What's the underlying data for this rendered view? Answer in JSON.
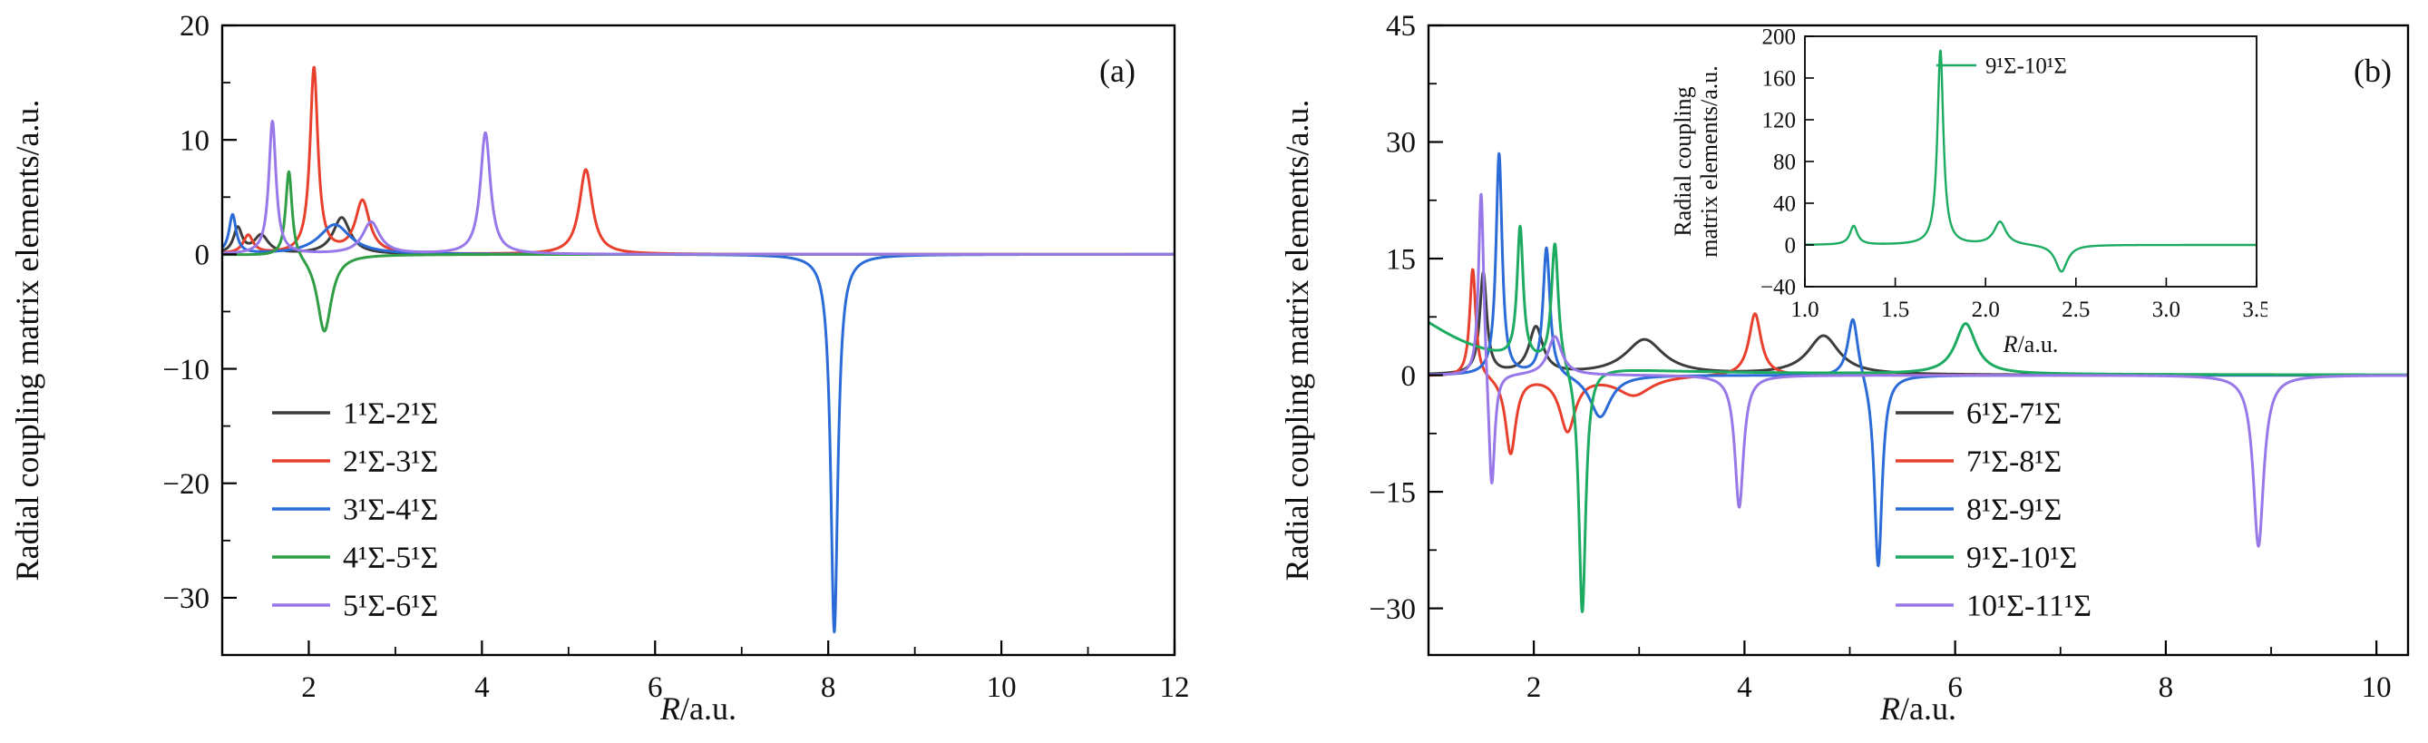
{
  "page": {
    "background": "#ffffff"
  },
  "chart_data": [
    {
      "id": "panel-a",
      "type": "line",
      "tag": "(a)",
      "xlabel": "R/a.u.",
      "ylabel": "Radial coupling matrix elements/a.u.",
      "xlim": [
        1,
        12
      ],
      "ylim": [
        -35,
        20
      ],
      "xticks": [
        2,
        4,
        6,
        8,
        10,
        12
      ],
      "yticks": [
        -30,
        -20,
        -10,
        0,
        10,
        20
      ],
      "xtick_decimals": 0,
      "grid": false,
      "legend_position": "lower-left",
      "curve_model": "lorentzian peaks: y = base + sum h*w^2/((x-c)^2+w^2), peak = [center c, height h, halfwidth w]",
      "series": [
        {
          "name": "1¹Σ-2¹Σ",
          "color": "#3d3d3d",
          "base": 0,
          "peaks": [
            [
              1.18,
              2.2,
              0.06
            ],
            [
              1.45,
              1.6,
              0.1
            ],
            [
              2.38,
              3.2,
              0.12
            ]
          ]
        },
        {
          "name": "2¹Σ-3¹Σ",
          "color": "#e8402c",
          "base": 0,
          "peaks": [
            [
              1.3,
              1.6,
              0.07
            ],
            [
              2.06,
              16.2,
              0.055
            ],
            [
              2.62,
              4.6,
              0.1
            ],
            [
              5.2,
              7.4,
              0.09
            ]
          ]
        },
        {
          "name": "3¹Σ-4¹Σ",
          "color": "#2b6bd8",
          "base": 0,
          "peaks": [
            [
              1.12,
              3.4,
              0.05
            ],
            [
              2.3,
              2.6,
              0.22
            ],
            [
              8.07,
              -33,
              0.05
            ]
          ]
        },
        {
          "name": "4¹Σ-5¹Σ",
          "color": "#2f9e44",
          "base": 0,
          "peaks": [
            [
              1.77,
              7.6,
              0.045
            ],
            [
              2.18,
              -6.8,
              0.1
            ]
          ]
        },
        {
          "name": "5¹Σ-6¹Σ",
          "color": "#9878e8",
          "base": 0,
          "peaks": [
            [
              1.58,
              11.6,
              0.05
            ],
            [
              2.72,
              2.8,
              0.12
            ],
            [
              4.04,
              10.6,
              0.07
            ]
          ]
        }
      ]
    },
    {
      "id": "panel-b",
      "type": "line",
      "tag": "(b)",
      "xlabel": "R/a.u.",
      "ylabel": "Radial coupling matrix elements/a.u.",
      "xlim": [
        1,
        10.3
      ],
      "ylim": [
        -36,
        45
      ],
      "xticks": [
        2,
        4,
        6,
        8,
        10
      ],
      "yticks": [
        -30,
        -15,
        0,
        15,
        30,
        45
      ],
      "xtick_decimals": 0,
      "grid": false,
      "legend_position": "lower-center",
      "curve_model": "lorentzian peaks: y = base + sum h*w^2/((x-c)^2+w^2), peak = [center c, height h, halfwidth w]",
      "series": [
        {
          "name": "6¹Σ-7¹Σ",
          "color": "#3d3d3d",
          "base": 0,
          "peaks": [
            [
              1.52,
              13,
              0.04
            ],
            [
              2.02,
              6,
              0.08
            ],
            [
              3.05,
              4.5,
              0.22
            ],
            [
              4.75,
              5,
              0.18
            ]
          ]
        },
        {
          "name": "7¹Σ-8¹Σ",
          "color": "#e8402c",
          "base": 0,
          "peaks": [
            [
              1.42,
              14,
              0.035
            ],
            [
              1.78,
              -10,
              0.06
            ],
            [
              2.32,
              -7,
              0.09
            ],
            [
              2.95,
              -2.5,
              0.2
            ],
            [
              4.1,
              8,
              0.07
            ]
          ]
        },
        {
          "name": "8¹Σ-9¹Σ",
          "color": "#2b6bd8",
          "base": 0,
          "peaks": [
            [
              1.67,
              28.5,
              0.035
            ],
            [
              2.12,
              16.5,
              0.04
            ],
            [
              2.63,
              -5.5,
              0.12
            ],
            [
              5.03,
              8,
              0.06
            ],
            [
              5.27,
              -25,
              0.045
            ]
          ]
        },
        {
          "name": "9¹Σ-10¹Σ",
          "color": "#1cab61",
          "base": 0,
          "peaks": [
            [
              0.6,
              9,
              0.7
            ],
            [
              1.87,
              17,
              0.035
            ],
            [
              2.2,
              16,
              0.04
            ],
            [
              2.46,
              -32,
              0.04
            ],
            [
              6.1,
              6.5,
              0.12
            ]
          ]
        },
        {
          "name": "10¹Σ-11¹Σ",
          "color": "#9878e8",
          "base": 0,
          "peaks": [
            [
              1.5,
              25,
              0.03
            ],
            [
              1.6,
              -16,
              0.035
            ],
            [
              2.2,
              5,
              0.08
            ],
            [
              3.95,
              -17,
              0.05
            ],
            [
              8.88,
              -22,
              0.06
            ]
          ]
        }
      ]
    },
    {
      "id": "panel-b-inset",
      "type": "line",
      "xlabel": "R/a.u.",
      "ylabel": [
        "Radial coupling",
        "matrix elements/a.u."
      ],
      "xlim": [
        1.0,
        3.5
      ],
      "ylim": [
        -40,
        200
      ],
      "xticks": [
        1.0,
        1.5,
        2.0,
        2.5,
        3.0,
        3.5
      ],
      "yticks": [
        -40,
        0,
        40,
        80,
        120,
        160,
        200
      ],
      "xtick_decimals": 1,
      "grid": false,
      "legend_position": "top-center",
      "curve_model": "lorentzian peaks: y = base + sum h*w^2/((x-c)^2+w^2), peak = [center c, height h, halfwidth w]",
      "series": [
        {
          "name": "9¹Σ-10¹Σ",
          "color": "#1cab61",
          "base": 0,
          "peaks": [
            [
              1.27,
              18,
              0.025
            ],
            [
              1.75,
              186,
              0.02
            ],
            [
              2.08,
              22,
              0.04
            ],
            [
              2.42,
              -26,
              0.04
            ]
          ]
        }
      ]
    }
  ]
}
